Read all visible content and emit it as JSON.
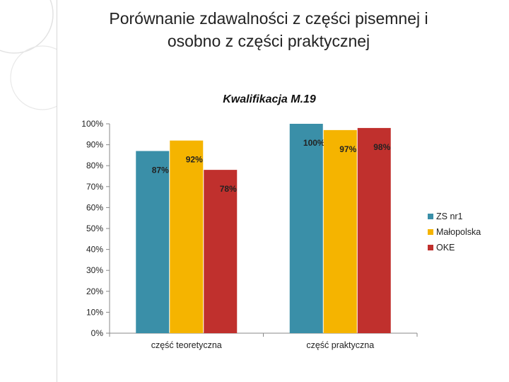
{
  "slide": {
    "title_line1": "Porównanie zdawalności z części pisemnej i",
    "title_line2": "osobno z części praktycznej"
  },
  "chart_data": {
    "type": "bar",
    "title": "Kwalifikacja M.19",
    "categories": [
      "część teoretyczna",
      "część praktyczna"
    ],
    "series": [
      {
        "name": "ZS nr1",
        "values": [
          87,
          100
        ],
        "labels": [
          "87%",
          "100%"
        ],
        "color": "#3A8FA8"
      },
      {
        "name": "Małopolska",
        "values": [
          92,
          97
        ],
        "labels": [
          "92%",
          "97%"
        ],
        "color": "#F5B400"
      },
      {
        "name": "OKE",
        "values": [
          78,
          98
        ],
        "labels": [
          "78%",
          "98%"
        ],
        "color": "#C0302D"
      }
    ],
    "yticks": [
      "0%",
      "10%",
      "20%",
      "30%",
      "40%",
      "50%",
      "60%",
      "70%",
      "80%",
      "90%",
      "100%"
    ],
    "ylim": [
      0,
      100
    ],
    "grid": false,
    "legend_position": "right"
  }
}
